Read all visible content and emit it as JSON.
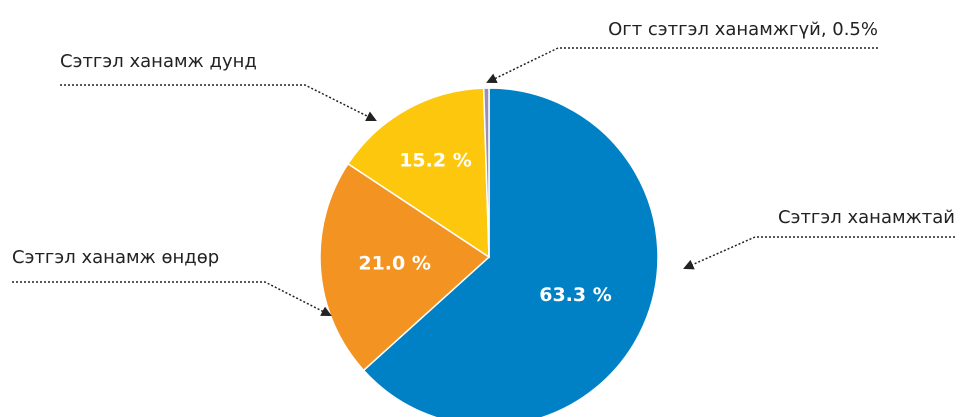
{
  "chart_data": {
    "type": "pie",
    "categories": [
      "Сэтгэл ханамжтай",
      "Сэтгэл ханамж өндөр",
      "Сэтгэл ханамж дунд",
      "Огт сэтгэл ханамжгүй, 0.5%"
    ],
    "values": [
      63.3,
      21.0,
      15.2,
      0.5
    ],
    "value_labels": [
      "63.3 %",
      "21.0 %",
      "15.2 %",
      null
    ],
    "colors": [
      "#0081c6",
      "#f39422",
      "#fdc70d",
      "#9a8fb8"
    ]
  }
}
